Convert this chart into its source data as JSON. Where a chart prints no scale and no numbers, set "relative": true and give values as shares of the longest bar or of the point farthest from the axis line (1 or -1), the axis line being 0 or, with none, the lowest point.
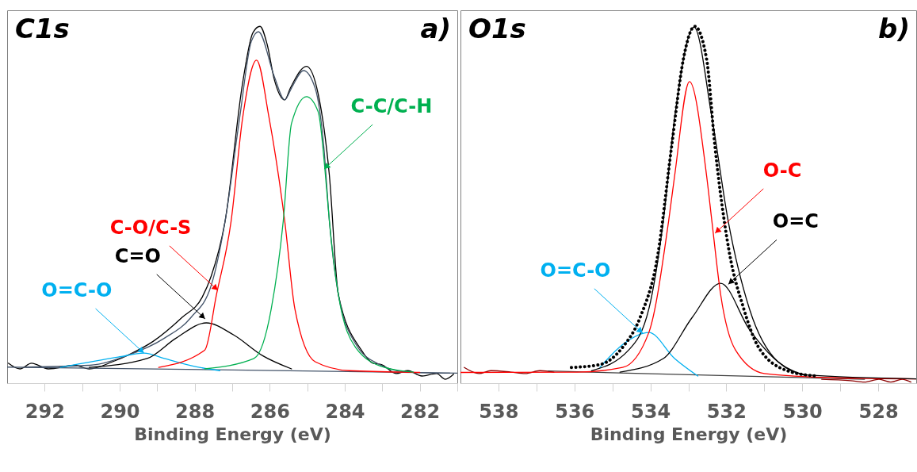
{
  "chart_data": [
    {
      "type": "line",
      "title": "C1s",
      "xlabel": "Binding Energy (eV)",
      "relative": true,
      "xlim": [
        293,
        281
      ],
      "xticks": [
        292,
        {
          "value": 291,
          "label": null
        },
        290,
        {
          "value": 289,
          "label": null
        },
        288,
        {
          "value": 287,
          "label": null
        },
        286,
        {
          "value": 285,
          "label": null
        },
        284,
        {
          "value": 283,
          "label": null
        },
        282,
        {
          "value": 281,
          "label": null
        }
      ],
      "annotations": [
        "a)",
        {
          "text": "C-O/C-S",
          "x": 287.38,
          "y": 0.26
        },
        {
          "text": "C=O",
          "x": 287.72,
          "y": 0.18
        },
        {
          "text": "O=C-O",
          "x": 289.35,
          "y": 0.084
        },
        {
          "text": "C-C/C-H",
          "x": 284.55,
          "y": 0.6
        }
      ],
      "series": [
        {
          "color": "#000000",
          "x": [
            292.97,
            292.66,
            292.35,
            291.9,
            291.2,
            290.81,
            290.19,
            289.73,
            289.11,
            288.34,
            287.8,
            287.56,
            287.19,
            286.72,
            286.45,
            286.26,
            286.07,
            285.88,
            285.6,
            285.45,
            285.02,
            284.71,
            284.41,
            284.17,
            283.56,
            283.25,
            283.02,
            282.63,
            282.32,
            281.94,
            281.55,
            281.32,
            281.1
          ],
          "values": [
            0.056,
            0.04,
            0.056,
            0.04,
            0.05,
            0.04,
            0.06,
            0.081,
            0.117,
            0.184,
            0.241,
            0.3,
            0.454,
            0.843,
            0.982,
            1.0,
            0.95,
            0.852,
            0.794,
            0.827,
            0.888,
            0.811,
            0.582,
            0.248,
            0.093,
            0.056,
            0.052,
            0.027,
            0.035,
            0.02,
            0.027,
            0.011,
            0.025
          ]
        },
        {
          "color": "#44546a",
          "x": [
            292.5,
            290.8,
            289.81,
            288.81,
            288.1,
            287.56,
            287.19,
            286.8,
            286.49,
            286.3,
            285.88,
            285.6,
            285.42,
            285.1,
            284.79,
            284.56,
            284.41,
            284.17,
            283.71,
            283.09,
            282.32,
            281.2
          ],
          "values": [
            0.045,
            0.05,
            0.077,
            0.126,
            0.184,
            0.274,
            0.454,
            0.745,
            0.958,
            0.985,
            0.86,
            0.794,
            0.827,
            0.876,
            0.827,
            0.664,
            0.454,
            0.248,
            0.11,
            0.053,
            0.031,
            0.028
          ]
        },
        {
          "color": "#44546a",
          "x": [
            293,
            287,
            281
          ],
          "values": [
            0.045,
            0.037,
            0.028
          ]
        },
        {
          "color": "#00b0f0",
          "x": [
            291.58,
            290.04,
            289.35,
            288.81,
            288.1,
            287.33
          ],
          "values": [
            0.044,
            0.073,
            0.084,
            0.069,
            0.049,
            0.035
          ]
        },
        {
          "color": "#000000",
          "x": [
            290.81,
            289.27,
            288.5,
            287.69,
            286.96,
            286.19,
            285.42
          ],
          "values": [
            0.044,
            0.069,
            0.126,
            0.169,
            0.135,
            0.077,
            0.04
          ]
        },
        {
          "color": "#ff0000",
          "x": [
            288.96,
            287.73,
            287.42,
            287.03,
            286.72,
            286.35,
            286.02,
            285.6,
            285.33,
            284.79,
            283.88,
            282
          ],
          "values": [
            0.044,
            0.093,
            0.248,
            0.454,
            0.745,
            0.905,
            0.745,
            0.454,
            0.208,
            0.06,
            0.035,
            0.03
          ]
        },
        {
          "color": "#00b050",
          "x": [
            287.73,
            286.42,
            285.96,
            285.64,
            285.42,
            285.02,
            284.71,
            284.48,
            284.41,
            284.17,
            283.71,
            282.94,
            282.17
          ],
          "values": [
            0.04,
            0.069,
            0.208,
            0.454,
            0.728,
            0.803,
            0.761,
            0.54,
            0.454,
            0.248,
            0.1,
            0.044,
            0.031
          ]
        }
      ]
    },
    {
      "type": "line",
      "title": "O1s",
      "xlabel": "Binding Energy (eV)",
      "relative": true,
      "xlim": [
        539,
        527
      ],
      "xticks": [
        538,
        {
          "value": 537,
          "label": null
        },
        536,
        {
          "value": 535,
          "label": null
        },
        534,
        {
          "value": 533,
          "label": null
        },
        532,
        {
          "value": 531,
          "label": null
        },
        530,
        {
          "value": 529,
          "label": null
        },
        528
      ],
      "annotations": [
        "b)",
        {
          "text": "O-C",
          "x": 532.3,
          "y": 0.42
        },
        {
          "text": "O=C",
          "x": 531.95,
          "y": 0.277
        },
        {
          "text": "O=C-O",
          "x": 534.2,
          "y": 0.14
        }
      ],
      "series": [
        {
          "color": "#8b0000",
          "x": [
            538.9,
            538.51,
            538.2,
            537.67,
            537.29,
            536.91,
            536.54,
            null,
            529.49,
            528.73,
            528.36,
            527.98,
            527.67,
            527.37,
            527.14
          ],
          "values": [
            0.044,
            0.027,
            0.035,
            0.031,
            0.027,
            0.035,
            0.031,
            null,
            0.011,
            0.007,
            0.003,
            0.011,
            0.003,
            0.011,
            0.003
          ]
        },
        {
          "color": "#404040",
          "x": [
            536.69,
            528.36
          ],
          "values": [
            0.034,
            0.011
          ]
        },
        {
          "color": "#00b0f0",
          "x": [
            535.33,
            534.72,
            534.04,
            533.36,
            532.75
          ],
          "values": [
            0.044,
            0.109,
            0.142,
            0.069,
            0.02
          ]
        },
        {
          "color": "#000000",
          "x": [
            534.8,
            533.66,
            532.9,
            532.15,
            531.39,
            530.64,
            529.88
          ],
          "values": [
            0.031,
            0.069,
            0.184,
            0.28,
            0.15,
            0.06,
            0.02
          ]
        },
        {
          "color": "#ff0000",
          "x": [
            539,
            535.93,
            534.73,
            534.04,
            533.52,
            533.36,
            532.97,
            532.52,
            532.38,
            532.15,
            531.76,
            531.0,
            529.11,
            527
          ],
          "values": [
            0.03,
            0.031,
            0.044,
            0.142,
            0.454,
            0.582,
            0.845,
            0.582,
            0.454,
            0.249,
            0.093,
            0.027,
            0.015,
            0.012
          ]
        },
        {
          "color": "#000000",
          "x": [
            535.55,
            534.57,
            534.04,
            533.66,
            533.36,
            532.85,
            532.38,
            531.95,
            531.39,
            530.64,
            529.88,
            527
          ],
          "values": [
            0.035,
            0.093,
            0.208,
            0.454,
            0.745,
            0.998,
            0.745,
            0.454,
            0.208,
            0.06,
            0.023,
            0.012
          ]
        },
        {
          "color": "#000000",
          "line_style": "dotted",
          "x": [
            536.08,
            535.33,
            534.72,
            534.27,
            533.81,
            533.44,
            533.13,
            532.83,
            532.52,
            532.3,
            531.93,
            531.54,
            531.16,
            530.4,
            529.64
          ],
          "values": [
            0.044,
            0.052,
            0.102,
            0.184,
            0.356,
            0.664,
            0.909,
            1.0,
            0.909,
            0.664,
            0.372,
            0.208,
            0.102,
            0.035,
            0.02
          ]
        }
      ]
    }
  ]
}
